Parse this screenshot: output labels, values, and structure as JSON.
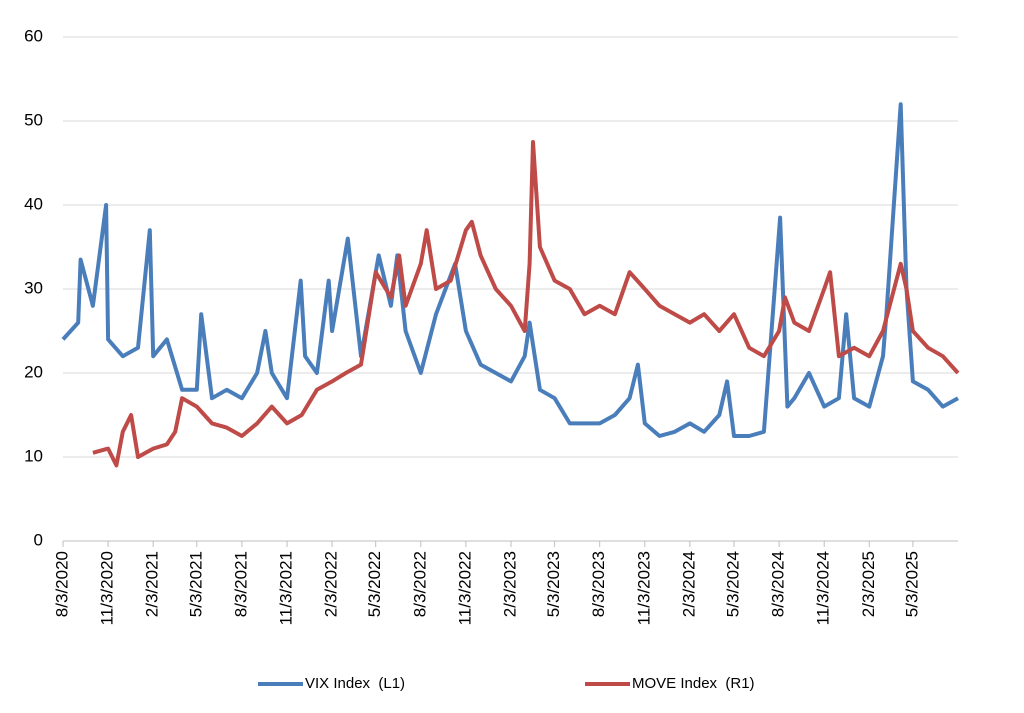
{
  "chart_data": {
    "type": "line",
    "xlim": [
      "8/3/2020",
      "8/3/2025"
    ],
    "xticks": [
      "8/3/2020",
      "11/3/2020",
      "2/3/2021",
      "5/3/2021",
      "8/3/2021",
      "11/3/2021",
      "2/3/2022",
      "5/3/2022",
      "8/3/2022",
      "11/3/2022",
      "2/3/2023",
      "5/3/2023",
      "8/3/2023",
      "11/3/2023",
      "2/3/2024",
      "5/3/2024",
      "8/3/2024",
      "11/3/2024",
      "2/3/2025",
      "5/3/2025"
    ],
    "ylim": [
      0,
      60
    ],
    "yticks": [
      0,
      10,
      20,
      30,
      40,
      50,
      60
    ],
    "grid": true,
    "legend": "bottom",
    "series": [
      {
        "name": "VIX Index  (L1)",
        "color": "#4a7ebb",
        "x": [
          "8/3/2020",
          "9/3/2020",
          "9/8/2020",
          "10/3/2020",
          "10/30/2020",
          "11/3/2020",
          "12/3/2020",
          "1/3/2021",
          "1/27/2021",
          "2/3/2021",
          "3/3/2021",
          "4/3/2021",
          "5/3/2021",
          "5/12/2021",
          "6/3/2021",
          "7/3/2021",
          "8/3/2021",
          "9/3/2021",
          "9/20/2021",
          "10/3/2021",
          "11/3/2021",
          "12/1/2021",
          "12/10/2021",
          "1/3/2022",
          "1/27/2022",
          "2/3/2022",
          "3/7/2022",
          "4/3/2022",
          "5/9/2022",
          "6/3/2022",
          "6/16/2022",
          "7/3/2022",
          "8/3/2022",
          "9/3/2022",
          "10/12/2022",
          "11/3/2022",
          "12/3/2022",
          "1/3/2023",
          "2/3/2023",
          "3/3/2023",
          "3/13/2023",
          "4/3/2023",
          "5/3/2023",
          "6/3/2023",
          "7/3/2023",
          "8/3/2023",
          "9/3/2023",
          "10/3/2023",
          "10/20/2023",
          "11/3/2023",
          "12/3/2023",
          "1/3/2024",
          "2/3/2024",
          "3/3/2024",
          "4/3/2024",
          "4/19/2024",
          "5/3/2024",
          "6/3/2024",
          "7/3/2024",
          "8/5/2024",
          "8/20/2024",
          "9/3/2024",
          "10/3/2024",
          "11/3/2024",
          "12/3/2024",
          "12/18/2024",
          "1/3/2025",
          "2/3/2025",
          "3/3/2025",
          "3/10/2025",
          "4/8/2025",
          "4/20/2025",
          "5/3/2025",
          "6/3/2025",
          "7/3/2025",
          "8/3/2025"
        ],
        "values": [
          24,
          26,
          33.5,
          28,
          40,
          24,
          22,
          23,
          37,
          22,
          24,
          18,
          18,
          27,
          17,
          18,
          17,
          20,
          25,
          20,
          17,
          31,
          22,
          20,
          31,
          25,
          36,
          22,
          34,
          28,
          34,
          25,
          20,
          27,
          33,
          25,
          21,
          20,
          19,
          22,
          26,
          18,
          17,
          14,
          14,
          14,
          15,
          17,
          21,
          14,
          12.5,
          13,
          14,
          13,
          15,
          19,
          12.5,
          12.5,
          13,
          38.5,
          16,
          17,
          20,
          16,
          17,
          27,
          17,
          16,
          22,
          27,
          52,
          30,
          19,
          18,
          16,
          17
        ]
      },
      {
        "name": "MOVE Index  (R1)",
        "color": "#be4b48",
        "x": [
          "10/3/2020",
          "11/3/2020",
          "11/20/2020",
          "12/3/2020",
          "12/20/2020",
          "1/3/2021",
          "2/3/2021",
          "3/3/2021",
          "3/20/2021",
          "4/3/2021",
          "5/3/2021",
          "6/3/2021",
          "7/3/2021",
          "8/3/2021",
          "9/3/2021",
          "10/3/2021",
          "11/3/2021",
          "12/3/2021",
          "1/3/2022",
          "2/3/2022",
          "3/3/2022",
          "4/3/2022",
          "5/3/2022",
          "6/3/2022",
          "6/20/2022",
          "7/3/2022",
          "8/3/2022",
          "8/15/2022",
          "9/3/2022",
          "10/3/2022",
          "11/3/2022",
          "11/15/2022",
          "12/3/2022",
          "1/3/2023",
          "2/3/2023",
          "3/3/2023",
          "3/13/2023",
          "3/20/2023",
          "4/3/2023",
          "5/3/2023",
          "6/3/2023",
          "7/3/2023",
          "8/3/2023",
          "9/3/2023",
          "10/3/2023",
          "11/3/2023",
          "12/3/2023",
          "1/3/2024",
          "2/3/2024",
          "3/3/2024",
          "4/3/2024",
          "5/3/2024",
          "6/3/2024",
          "7/3/2024",
          "8/3/2024",
          "8/15/2024",
          "9/3/2024",
          "10/3/2024",
          "11/3/2024",
          "11/15/2024",
          "12/3/2024",
          "1/3/2025",
          "2/3/2025",
          "3/3/2025",
          "4/8/2025",
          "4/20/2025",
          "5/3/2025",
          "6/3/2025",
          "7/3/2025",
          "8/3/2025"
        ],
        "values": [
          10.5,
          11,
          9,
          13,
          15,
          10,
          11,
          11.5,
          13,
          17,
          16,
          14,
          13.5,
          12.5,
          14,
          16,
          14,
          15,
          18,
          19,
          20,
          21,
          32,
          29,
          34,
          28,
          33,
          37,
          30,
          31,
          37,
          38,
          34,
          30,
          28,
          25,
          33,
          47.5,
          35,
          31,
          30,
          27,
          28,
          27,
          32,
          30,
          28,
          27,
          26,
          27,
          25,
          27,
          23,
          22,
          25,
          29,
          26,
          25,
          30,
          32,
          22,
          23,
          22,
          25,
          33,
          30,
          25,
          23,
          22,
          20
        ]
      }
    ]
  }
}
